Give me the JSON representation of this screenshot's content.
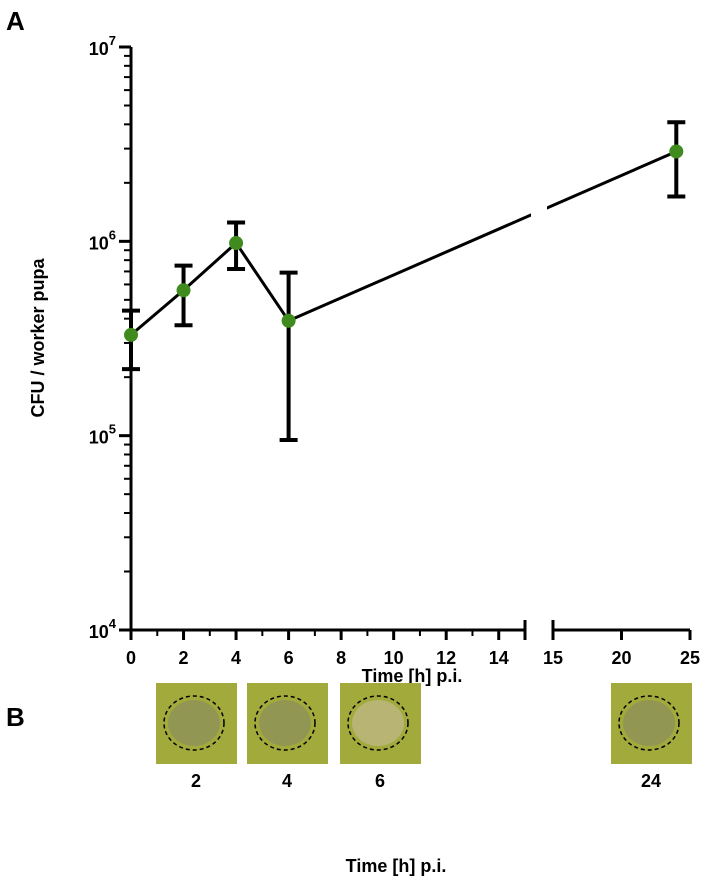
{
  "chart_data": {
    "type": "line",
    "panel_label": "A",
    "xlabel": "Time [h] p.i.",
    "ylabel": "CFU / worker pupa",
    "x": [
      0,
      2,
      4,
      6,
      24
    ],
    "series": [
      {
        "color": "#3f8b1e",
        "values": [
          330000,
          560000,
          980000,
          390000,
          2900000
        ],
        "lower": [
          220000,
          370000,
          720000,
          95000,
          1700000
        ],
        "upper": [
          440000,
          750000,
          1250000,
          690000,
          4100000
        ]
      }
    ],
    "x_segments": [
      [
        0,
        15
      ],
      [
        15,
        25
      ]
    ],
    "xticks": [
      0,
      2,
      4,
      6,
      8,
      10,
      12,
      14,
      15,
      20,
      25
    ],
    "xminorticks": [
      1,
      3,
      5,
      7,
      9,
      11,
      13
    ],
    "log_y": true,
    "minor_ticks": true,
    "ylim": [
      10000,
      10000000
    ],
    "yticks": [
      {
        "value": 10000,
        "label": "10",
        "exponent": "4"
      },
      {
        "value": 100000,
        "label": "10",
        "exponent": "5"
      },
      {
        "value": 1000000,
        "label": "10",
        "exponent": "6"
      },
      {
        "value": 10000000,
        "label": "10",
        "exponent": "7"
      }
    ]
  },
  "panel_b": {
    "label": "B",
    "xlabel": "Time [h] p.i.",
    "images": [
      {
        "label": "2"
      },
      {
        "label": "4"
      },
      {
        "label": "6"
      },
      {
        "label": "24"
      }
    ]
  }
}
